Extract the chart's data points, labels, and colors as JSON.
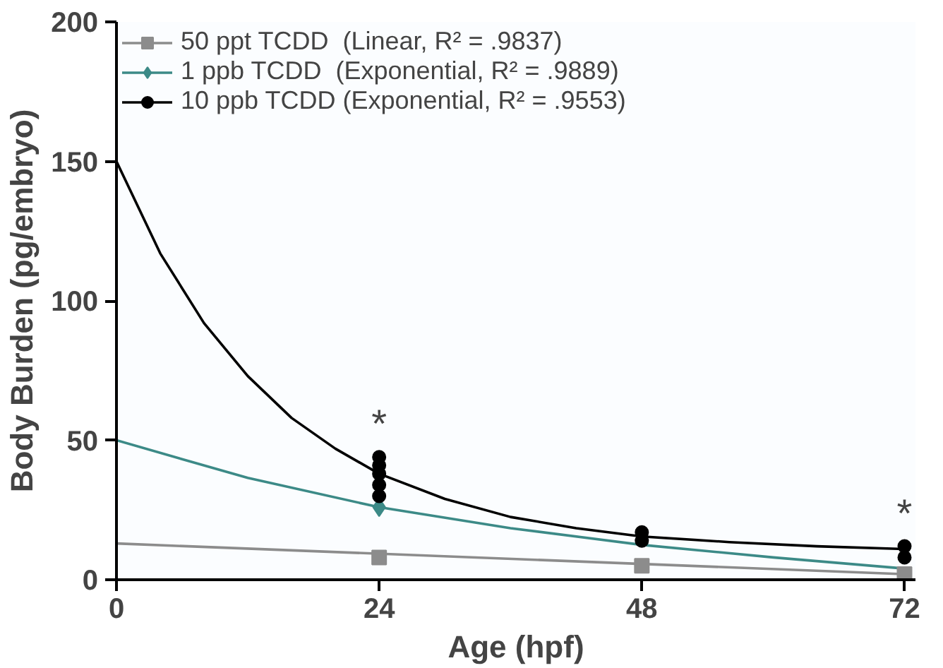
{
  "chart_data": {
    "type": "scatter",
    "xlabel": "Age (hpf)",
    "ylabel": "Body Burden (pg/embryo)",
    "xlim": [
      0,
      73
    ],
    "xticks": [
      0,
      24,
      48,
      72
    ],
    "ylim": [
      0,
      200
    ],
    "yticks": [
      0,
      50,
      100,
      150,
      200
    ],
    "grid": false,
    "legend": "top left",
    "annotations": [
      {
        "text": "*",
        "x": 24,
        "y": 44
      },
      {
        "text": "*",
        "x": 72,
        "y": 12
      }
    ],
    "series": [
      {
        "type": "line",
        "color": "#8c8c8c",
        "x": [
          0,
          72
        ],
        "values": [
          13,
          2
        ]
      },
      {
        "type": "line",
        "color": "#3c8a87",
        "x": [
          0,
          12,
          24,
          36,
          48,
          60,
          72
        ],
        "values": [
          50,
          36.5,
          26,
          18.5,
          12.5,
          8,
          4
        ]
      },
      {
        "type": "line",
        "color": "#000000",
        "x": [
          0,
          4,
          8,
          12,
          16,
          20,
          24,
          30,
          36,
          42,
          48,
          56,
          64,
          72
        ],
        "values": [
          150,
          117,
          92,
          73,
          58,
          47,
          38,
          29,
          22.5,
          18.5,
          15.5,
          13.5,
          12,
          11
        ]
      },
      {
        "name": "50 ppt TCDD  (Linear, R² = .9837)",
        "marker": "square",
        "color": "#8c8c8c",
        "x": [
          24,
          48,
          72
        ],
        "values": [
          8,
          5,
          2
        ]
      },
      {
        "name": "1 ppb TCDD  (Exponential, R² = .9889)",
        "marker": "diamond",
        "color": "#3c8a87",
        "x": [
          24
        ],
        "values": [
          26
        ]
      },
      {
        "name": "10 ppb TCDD (Exponential, R² = .9553)",
        "marker": "circle",
        "color": "#000000",
        "x": [
          24,
          24,
          24,
          24,
          24,
          48,
          48,
          72,
          72
        ],
        "values": [
          30,
          34,
          38,
          41,
          44,
          14,
          17,
          8,
          12
        ]
      }
    ]
  }
}
